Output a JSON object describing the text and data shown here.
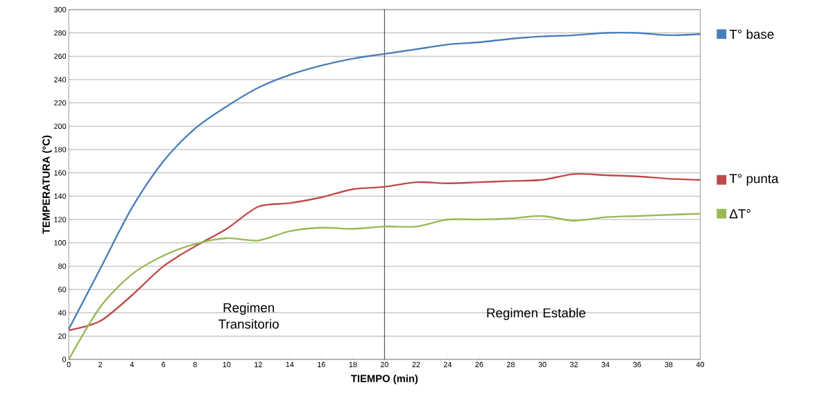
{
  "chart_data": {
    "type": "line",
    "xlabel": "TIEMPO (min)",
    "ylabel": "TEMPERATURA (°C)",
    "x": [
      0,
      2,
      4,
      6,
      8,
      10,
      12,
      14,
      16,
      18,
      20,
      22,
      24,
      26,
      28,
      30,
      32,
      34,
      36,
      38,
      40
    ],
    "series": [
      {
        "name": "T° base",
        "color": "#4a7ebb",
        "values": [
          26,
          78,
          130,
          170,
          198,
          217,
          233,
          244,
          252,
          258,
          262,
          266,
          270,
          272,
          275,
          277,
          278,
          280,
          280,
          278,
          279
        ]
      },
      {
        "name": "T° punta",
        "color": "#be4b48",
        "values": [
          25,
          33,
          55,
          80,
          97,
          112,
          131,
          134,
          139,
          146,
          148,
          152,
          151,
          152,
          153,
          154,
          159,
          158,
          157,
          155,
          154
        ]
      },
      {
        "name": "ΔT°",
        "color": "#98b954",
        "values": [
          0,
          45,
          73,
          89,
          99,
          104,
          102,
          110,
          113,
          112,
          114,
          114,
          120,
          120,
          121,
          123,
          119,
          122,
          123,
          124,
          125
        ]
      }
    ],
    "xlim": [
      0,
      40
    ],
    "ylim": [
      0,
      300
    ],
    "xticks": [
      0,
      2,
      4,
      6,
      8,
      10,
      12,
      14,
      16,
      18,
      20,
      22,
      24,
      26,
      28,
      30,
      32,
      34,
      36,
      38,
      40
    ],
    "yticks": [
      0,
      20,
      40,
      60,
      80,
      100,
      120,
      140,
      160,
      180,
      200,
      220,
      240,
      260,
      280,
      300
    ],
    "grid": "y",
    "legend": "right",
    "marker": "none",
    "line_style": "solid",
    "ref_lines": [
      {
        "axis": "x",
        "value": 20,
        "color": "#000000"
      }
    ],
    "annotations": [
      "Regimen Transitorio",
      "Regimen Estable"
    ]
  }
}
